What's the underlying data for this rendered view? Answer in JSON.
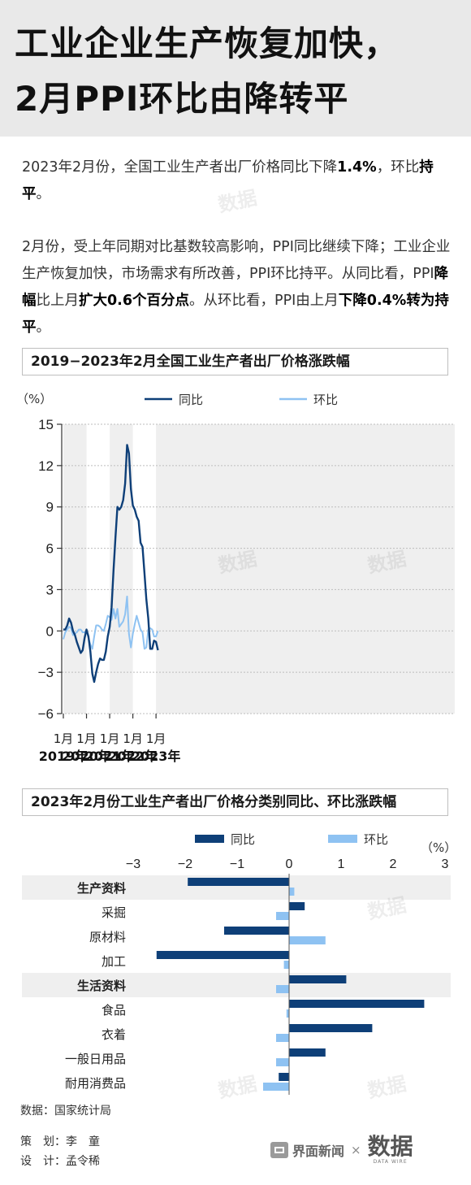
{
  "header": {
    "title_line1": "工业企业生产恢复加快，",
    "title_line2": "2月PPI环比由降转平"
  },
  "intro": {
    "p1_a": "2023年2月份，全国工业生产者出厂价格同比下降",
    "p1_b": "1.4%",
    "p1_c": "，环比",
    "p1_d": "持平",
    "p1_e": "。",
    "p2_a": "2月份，受上年同期对比基数较高影响，PPI同比继续下降；工业企业生产恢复加快，市场需求有所改善，PPI环比持平。从同比看，PPI",
    "p2_b": "降幅",
    "p2_c": "比上月",
    "p2_d": "扩大0.6个百分点",
    "p2_e": "。从环比看，PPI由上月",
    "p2_f": "下降0.4%转为持平",
    "p2_g": "。"
  },
  "colors": {
    "dark_blue": "#0e3f78",
    "light_blue": "#8ec2f2",
    "band_gray": "#efefef"
  },
  "watermark": "数据",
  "chart_data": [
    {
      "type": "line",
      "title": "2019−2023年2月全国工业生产者出厂价格涨跌幅",
      "unit": "（%）",
      "ylim": [
        -6,
        15
      ],
      "yticks": [
        15,
        12,
        9,
        6,
        3,
        0,
        -3,
        -6
      ],
      "x_ticks": [
        {
          "month": "1月",
          "year": "2019年"
        },
        {
          "month": "1月",
          "year": "2020年"
        },
        {
          "month": "1月",
          "year": "2021年"
        },
        {
          "month": "1月",
          "year": "2022年"
        },
        {
          "month": "1月",
          "year": "2023年"
        }
      ],
      "legend_position": "top",
      "series": [
        {
          "name": "同比",
          "color": "#0e3f78",
          "values": [
            0.1,
            0.1,
            0.4,
            0.9,
            0.6,
            0.0,
            -0.3,
            -0.8,
            -1.2,
            -1.6,
            -1.4,
            -0.5,
            0.1,
            -0.4,
            -1.5,
            -3.1,
            -3.7,
            -3.0,
            -2.4,
            -2.0,
            -2.1,
            -2.1,
            -1.5,
            -0.4,
            0.3,
            1.7,
            4.4,
            6.8,
            9.0,
            8.8,
            9.0,
            9.5,
            10.7,
            13.5,
            12.9,
            10.3,
            9.1,
            8.8,
            8.3,
            8.0,
            6.4,
            6.1,
            4.2,
            2.3,
            0.9,
            -1.3,
            -1.3,
            -0.7,
            -0.8,
            -1.4
          ]
        },
        {
          "name": "环比",
          "color": "#8ec2f2",
          "values": [
            -0.6,
            -0.1,
            0.1,
            0.3,
            0.2,
            -0.3,
            -0.2,
            -0.1,
            0.1,
            0.1,
            -0.1,
            -0.1,
            0.0,
            -0.5,
            -1.0,
            -1.3,
            -0.4,
            0.4,
            0.4,
            0.3,
            0.1,
            0.0,
            0.5,
            1.1,
            1.0,
            0.8,
            1.6,
            0.9,
            1.6,
            0.3,
            0.5,
            0.7,
            1.2,
            2.5,
            -0.2,
            -1.2,
            -0.2,
            0.5,
            1.1,
            0.6,
            0.1,
            -0.1,
            -1.3,
            -1.2,
            0.1,
            0.2,
            0.1,
            -0.4,
            -0.4,
            0.0
          ]
        }
      ]
    },
    {
      "type": "bar",
      "title": "2023年2月份工业生产者出厂价格分类别同比、环比涨跌幅",
      "unit": "（%）",
      "xlim": [
        -3,
        3
      ],
      "xticks": [
        "−3",
        "−2",
        "−1",
        "0",
        "1",
        "2",
        "3"
      ],
      "legend_position": "top",
      "categories": [
        {
          "name": "生产资料",
          "group": true
        },
        {
          "name": "采掘",
          "group": false
        },
        {
          "name": "原材料",
          "group": false
        },
        {
          "name": "加工",
          "group": false
        },
        {
          "name": "生活资料",
          "group": true
        },
        {
          "name": "食品",
          "group": false
        },
        {
          "name": "衣着",
          "group": false
        },
        {
          "name": "一般日用品",
          "group": false
        },
        {
          "name": "耐用消费品",
          "group": false
        }
      ],
      "series": [
        {
          "name": "同比",
          "color": "#0e3f78",
          "values": [
            -1.95,
            0.3,
            -1.25,
            -2.55,
            1.1,
            2.6,
            1.6,
            0.7,
            -0.2
          ]
        },
        {
          "name": "环比",
          "color": "#8ec2f2",
          "values": [
            0.1,
            -0.25,
            0.7,
            -0.1,
            -0.25,
            -0.05,
            -0.25,
            -0.25,
            -0.5
          ]
        }
      ]
    }
  ],
  "footer": {
    "source": "数据：国家统计局",
    "credit1": "策　划：李　童",
    "credit2": "设　计：孟令稀",
    "brand": "界面新闻",
    "times": "×",
    "logo": "数据",
    "logo_sub": "DATA WIRE"
  }
}
